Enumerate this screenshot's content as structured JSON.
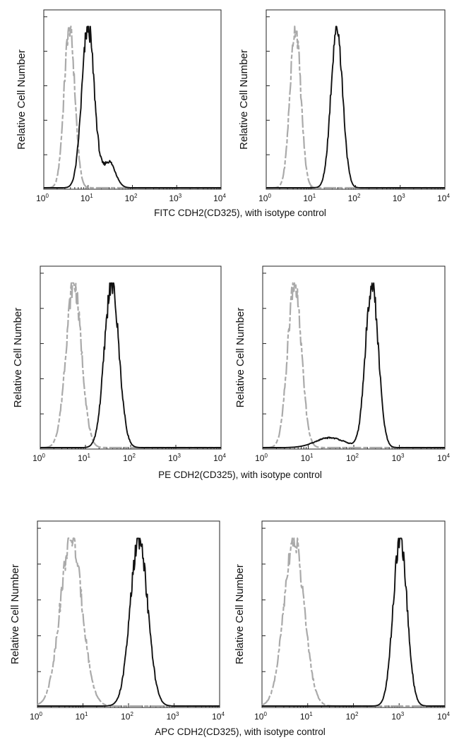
{
  "chart_data": [
    {
      "type": "line",
      "xscale": "log",
      "xlim": [
        1,
        10000
      ],
      "ylabel": "Relative Cell Number",
      "x_tick_labels": [
        "10^0",
        "10^1",
        "10^2",
        "10^3",
        "10^4"
      ],
      "grid": false,
      "series": [
        {
          "role": "isotype control",
          "color": "#aaaaaa",
          "dash": "dashed",
          "peak_x": 3.8,
          "width_log10": 0.12
        },
        {
          "role": "stained",
          "color": "#111111",
          "dash": "solid",
          "peak_x": 10,
          "width_log10": 0.14,
          "tail_x": 30
        }
      ]
    },
    {
      "type": "line",
      "xscale": "log",
      "xlim": [
        1,
        10000
      ],
      "ylabel": "Relative Cell Number",
      "x_tick_labels": [
        "10^0",
        "10^1",
        "10^2",
        "10^3",
        "10^4"
      ],
      "grid": false,
      "series": [
        {
          "role": "isotype control",
          "color": "#aaaaaa",
          "dash": "dashed",
          "peak_x": 4.5,
          "width_log10": 0.12
        },
        {
          "role": "stained",
          "color": "#111111",
          "dash": "solid",
          "peak_x": 38,
          "width_log10": 0.13
        }
      ]
    },
    {
      "type": "line",
      "xscale": "log",
      "xlim": [
        1,
        10000
      ],
      "ylabel": "Relative Cell Number",
      "x_tick_labels": [
        "10^0",
        "10^1",
        "10^2",
        "10^3",
        "10^4"
      ],
      "grid": false,
      "series": [
        {
          "role": "isotype control",
          "color": "#aaaaaa",
          "dash": "dashed",
          "peak_x": 5.5,
          "width_log10": 0.17
        },
        {
          "role": "stained",
          "color": "#111111",
          "dash": "solid",
          "peak_x": 38,
          "width_log10": 0.16
        }
      ]
    },
    {
      "type": "line",
      "xscale": "log",
      "xlim": [
        1,
        10000
      ],
      "ylabel": "Relative Cell Number",
      "x_tick_labels": [
        "10^0",
        "10^1",
        "10^2",
        "10^3",
        "10^4"
      ],
      "grid": false,
      "series": [
        {
          "role": "isotype control",
          "color": "#aaaaaa",
          "dash": "dashed",
          "peak_x": 5,
          "width_log10": 0.15
        },
        {
          "role": "stained",
          "color": "#111111",
          "dash": "solid",
          "peak_x": 250,
          "width_log10": 0.14,
          "left_shoulder_x": 30
        }
      ]
    },
    {
      "type": "line",
      "xscale": "log",
      "xlim": [
        1,
        10000
      ],
      "ylabel": "Relative Cell Number",
      "x_tick_labels": [
        "10^0",
        "10^1",
        "10^2",
        "10^3",
        "10^4"
      ],
      "grid": false,
      "series": [
        {
          "role": "isotype control",
          "color": "#aaaaaa",
          "dash": "dashed",
          "peak_x": 5.5,
          "width_log10": 0.24
        },
        {
          "role": "stained",
          "color": "#111111",
          "dash": "solid",
          "peak_x": 170,
          "width_log10": 0.19
        }
      ]
    },
    {
      "type": "line",
      "xscale": "log",
      "xlim": [
        1,
        10000
      ],
      "ylabel": "Relative Cell Number",
      "x_tick_labels": [
        "10^0",
        "10^1",
        "10^2",
        "10^3",
        "10^4"
      ],
      "grid": false,
      "series": [
        {
          "role": "isotype control",
          "color": "#aaaaaa",
          "dash": "dashed",
          "peak_x": 5,
          "width_log10": 0.22
        },
        {
          "role": "stained",
          "color": "#111111",
          "dash": "solid",
          "peak_x": 1050,
          "width_log10": 0.15
        }
      ]
    }
  ],
  "captions": [
    "FITC CDH2(CD325), with isotype control",
    "PE CDH2(CD325), with isotype control",
    "APC CDH2(CD325), with isotype control"
  ],
  "tick_base": "10",
  "tick_exponents": [
    "0",
    "1",
    "2",
    "3",
    "4"
  ]
}
